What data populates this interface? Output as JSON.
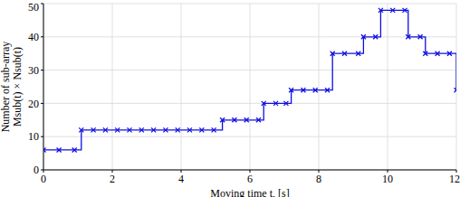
{
  "chart_data": {
    "type": "line",
    "xlabel": "Moving time t, [s]",
    "ylabel": [
      "Number of sub-array",
      "Msub(t) × Nsub(t)"
    ],
    "x": [
      0,
      0.45,
      0.9,
      1.1,
      1.45,
      1.8,
      2.15,
      2.5,
      2.85,
      3.2,
      3.55,
      3.9,
      4.25,
      4.6,
      4.95,
      5.2,
      5.55,
      5.9,
      6.25,
      6.4,
      6.75,
      7.05,
      7.2,
      7.55,
      7.9,
      8.25,
      8.4,
      8.75,
      9.15,
      9.3,
      9.65,
      9.8,
      10.15,
      10.5,
      10.6,
      10.95,
      11.1,
      11.45,
      11.8,
      12
    ],
    "values": [
      6,
      6,
      6,
      12,
      12,
      12,
      12,
      12,
      12,
      12,
      12,
      12,
      12,
      12,
      12,
      15,
      15,
      15,
      15,
      20,
      20,
      20,
      24,
      24,
      24,
      24,
      35,
      35,
      35,
      40,
      40,
      48,
      48,
      48,
      40,
      40,
      35,
      35,
      35,
      24
    ],
    "color": "#1010e0",
    "marker": "x",
    "line_style": "step",
    "xlim": [
      0,
      12
    ],
    "xticks": [
      0,
      2,
      4,
      6,
      8,
      10,
      12
    ],
    "ylim": [
      0,
      50
    ],
    "yticks": [
      0,
      10,
      20,
      30,
      40,
      50
    ],
    "grid": true
  }
}
